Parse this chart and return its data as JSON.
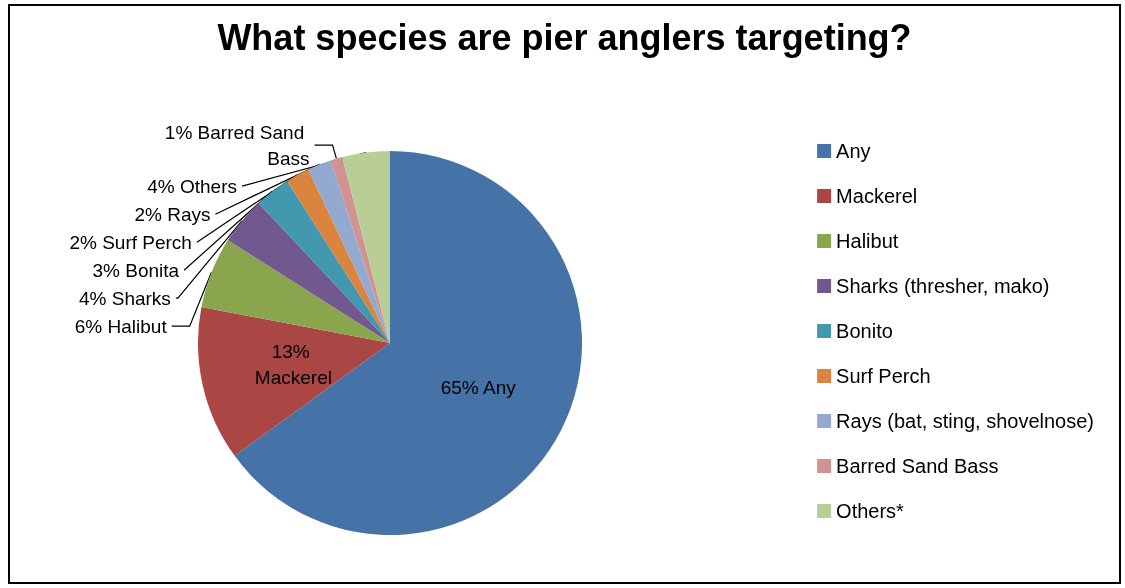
{
  "chart_data": {
    "type": "pie",
    "title": "What species are pier anglers targeting?",
    "categories": [
      "Any",
      "Mackerel",
      "Halibut",
      "Sharks (thresher, mako)",
      "Bonito",
      "Surf Perch",
      "Rays (bat, sting, shovelnose)",
      "Barred Sand Bass",
      "Others*"
    ],
    "values": [
      65,
      13,
      6,
      4,
      3,
      2,
      2,
      1,
      4
    ],
    "colors": [
      "#4572a7",
      "#aa4643",
      "#89a54e",
      "#71588f",
      "#4198af",
      "#db843d",
      "#93a9cf",
      "#d19392",
      "#b9cd96"
    ],
    "value_labels": [
      "65% Any",
      "13% Mackerel",
      "6% Halibut",
      "4% Sharks",
      "3% Bonita",
      "2% Surf Perch",
      "2% Rays",
      "1% Barred Sand Bass",
      "4% Others"
    ],
    "legend": "right"
  }
}
